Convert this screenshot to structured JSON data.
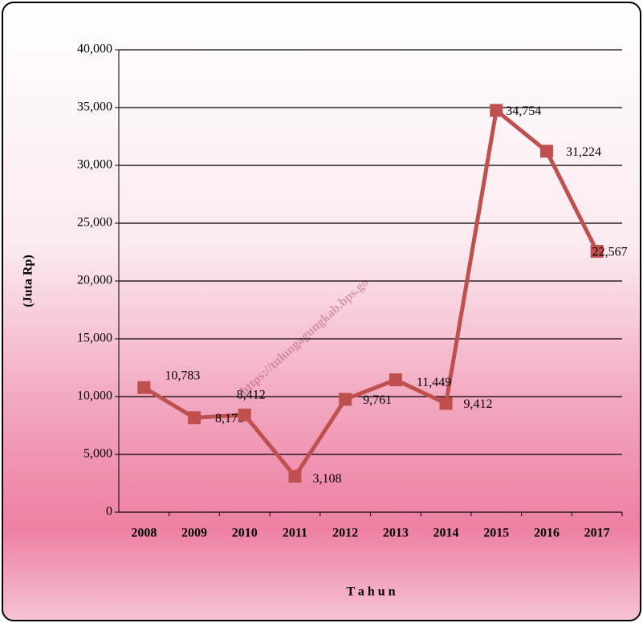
{
  "chart_data": {
    "type": "line",
    "categories": [
      "2008",
      "2009",
      "2010",
      "2011",
      "2012",
      "2013",
      "2014",
      "2015",
      "2016",
      "2017"
    ],
    "series": [
      {
        "color": "#c0504d",
        "values": [
          10783,
          8173,
          8412,
          3108,
          9761,
          11449,
          9412,
          34754,
          31224,
          22567
        ],
        "value_labels": [
          "10,783",
          "8,173",
          "8,412",
          "3,108",
          "9,761",
          "11,449",
          "9,412",
          "34,754",
          "31,224",
          "22,567"
        ]
      }
    ],
    "ylim": [
      0,
      40000
    ],
    "yticks": [
      0,
      {
        "value": 5000,
        "label": "5,000"
      },
      {
        "value": 10000,
        "label": "10,000"
      },
      {
        "value": 15000,
        "label": "15,000"
      },
      {
        "value": 20000,
        "label": "20,000"
      },
      {
        "value": 25000,
        "label": "25,000"
      },
      {
        "value": 30000,
        "label": "30,000"
      },
      {
        "value": 35000,
        "label": "35,000"
      },
      {
        "value": 40000,
        "label": "40,000"
      }
    ],
    "grid": true,
    "y_label": "(Juta Rp)",
    "x_label": "T a h u n",
    "watermark": "https://tulungagungkab.bps.go"
  }
}
